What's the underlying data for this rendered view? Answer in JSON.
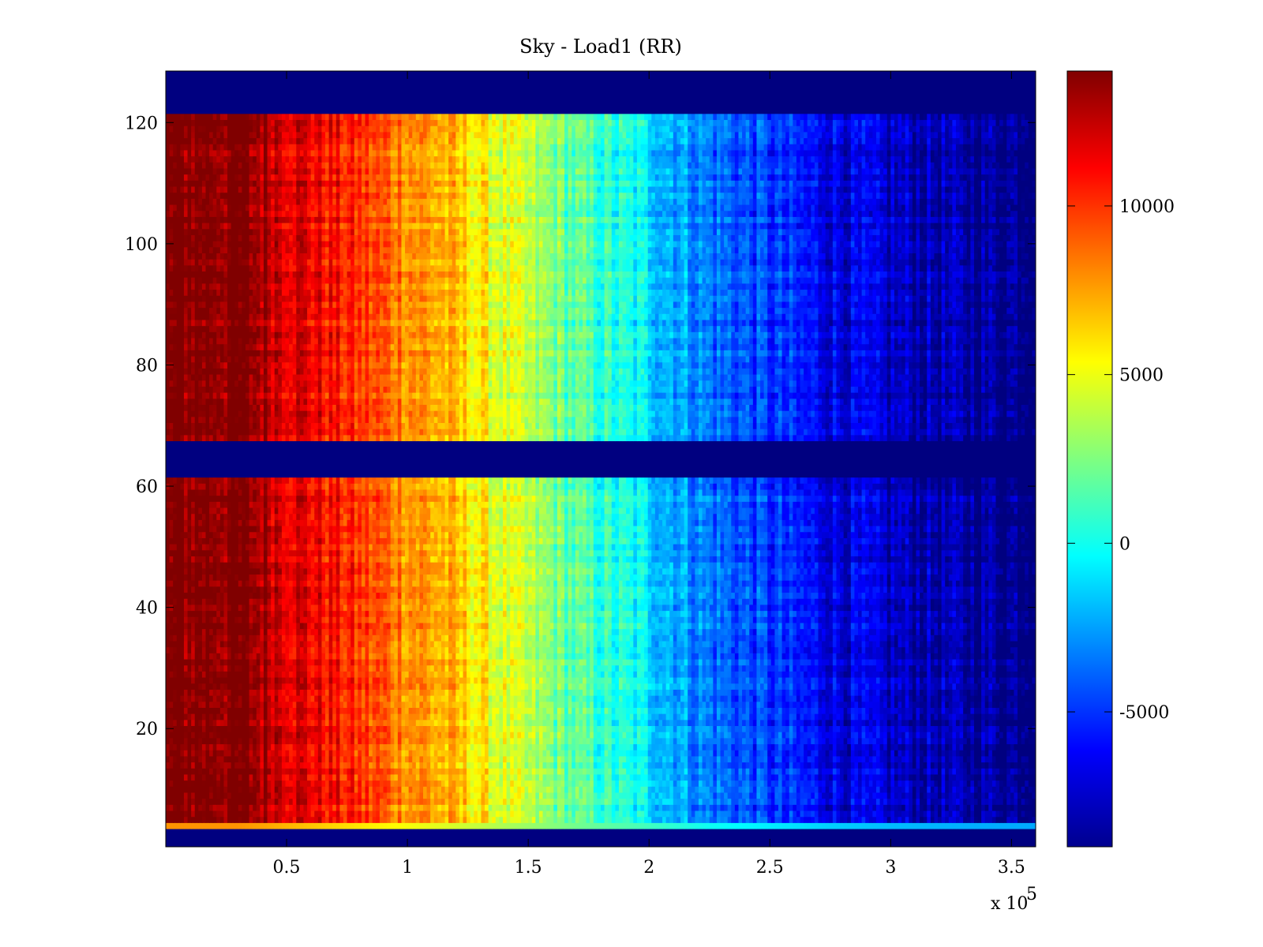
{
  "chart_data": {
    "type": "heatmap",
    "title": "Sky - Load1 (RR)",
    "xlabel": "",
    "ylabel": "",
    "x_multiplier_label": "x 10",
    "x_multiplier_exponent": "5",
    "x_range": [
      0,
      360000
    ],
    "x_ticks": [
      {
        "value": 0.5,
        "label": "0.5"
      },
      {
        "value": 1.0,
        "label": "1"
      },
      {
        "value": 1.5,
        "label": "1.5"
      },
      {
        "value": 2.0,
        "label": "2"
      },
      {
        "value": 2.5,
        "label": "2.5"
      },
      {
        "value": 3.0,
        "label": "3"
      },
      {
        "value": 3.5,
        "label": "3.5"
      }
    ],
    "x_tick_scale": 100000,
    "y_range": [
      0.5,
      128.5
    ],
    "y_ticks": [
      {
        "value": 20,
        "label": "20"
      },
      {
        "value": 40,
        "label": "40"
      },
      {
        "value": 60,
        "label": "60"
      },
      {
        "value": 80,
        "label": "80"
      },
      {
        "value": 100,
        "label": "100"
      },
      {
        "value": 120,
        "label": "120"
      }
    ],
    "colormap": "jet",
    "color_range": [
      -9000,
      14000
    ],
    "colorbar_ticks": [
      {
        "value": 10000,
        "label": "10000"
      },
      {
        "value": 5000,
        "label": "5000"
      },
      {
        "value": 0,
        "label": "0"
      },
      {
        "value": -5000,
        "label": "-5000"
      }
    ],
    "empty_channel_bands": [
      [
        0.5,
        3.5
      ],
      [
        61.5,
        67.5
      ],
      [
        121.5,
        128.5
      ]
    ],
    "empty_value": -9000,
    "edge_channel_rows": [
      4
    ],
    "approx_profile_x": [
      0,
      30000,
      60000,
      90000,
      115000,
      140000,
      170000,
      195000,
      225000,
      250000,
      275000,
      300000,
      330000,
      360000
    ],
    "approx_profile_value": [
      14000,
      14000,
      11500,
      9000,
      7000,
      4500,
      1500,
      -500,
      -3500,
      -5000,
      -6500,
      -7500,
      -8200,
      -8500
    ],
    "grid": false,
    "colorbar": true
  }
}
